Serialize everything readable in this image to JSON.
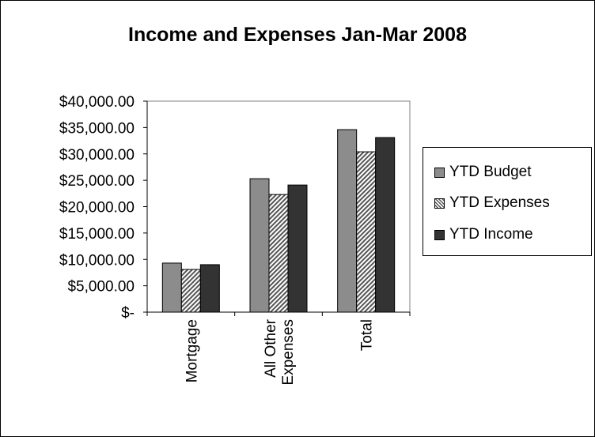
{
  "chart_data": {
    "type": "bar",
    "title": "Income and Expenses Jan-Mar 2008",
    "categories": [
      [
        "Mortgage"
      ],
      [
        "All Other",
        "Expenses"
      ],
      [
        "Total"
      ]
    ],
    "series": [
      {
        "name": "YTD Budget",
        "values": [
          9300,
          25300,
          34600
        ]
      },
      {
        "name": "YTD Expenses",
        "values": [
          8100,
          22300,
          30400
        ]
      },
      {
        "name": "YTD Income",
        "values": [
          9000,
          24100,
          33100
        ]
      }
    ],
    "ylim": [
      0,
      40000
    ],
    "yticks": [
      0,
      5000,
      10000,
      15000,
      20000,
      25000,
      30000,
      35000,
      40000
    ],
    "ytick_labels": [
      "$-",
      "$5,000.00",
      "$10,000.00",
      "$15,000.00",
      "$20,000.00",
      "$25,000.00",
      "$30,000.00",
      "$35,000.00",
      "$40,000.00"
    ],
    "legend_position": "right",
    "grid": false
  },
  "colors": {
    "ytd_budget": "#8c8c8c",
    "ytd_expenses_pattern": "#555555",
    "ytd_income": "#333333"
  }
}
